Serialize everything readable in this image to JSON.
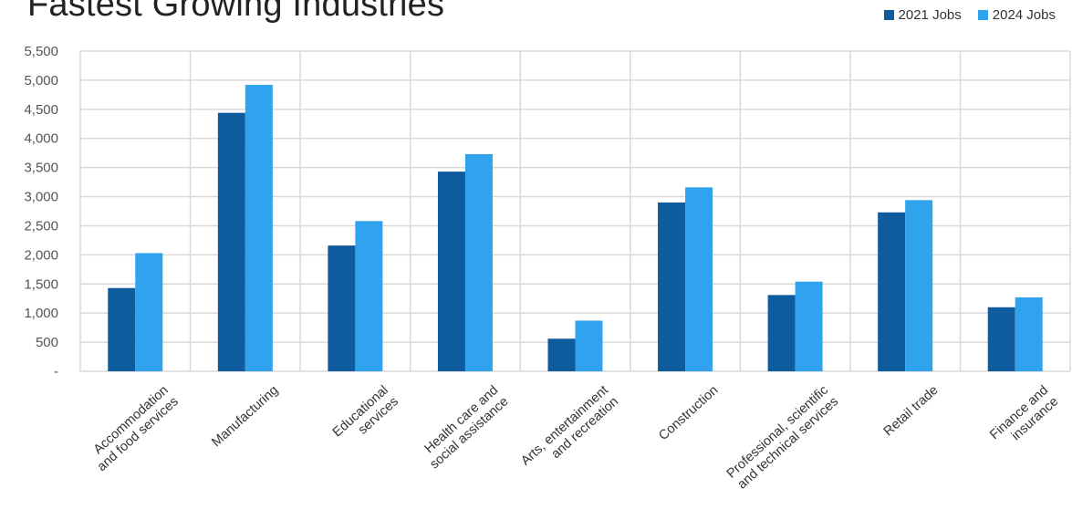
{
  "colors": {
    "series_2021": "#0e5b9e",
    "series_2024": "#31a3ee",
    "grid": "#d9d9d9"
  },
  "chart_data": {
    "type": "bar",
    "title": "Fastest Growing Industries",
    "categories": [
      [
        "Accommodation",
        "and food services"
      ],
      [
        "Manufacturing"
      ],
      [
        "Educational",
        "services"
      ],
      [
        "Health care and",
        "social assistance"
      ],
      [
        "Arts, entertainment",
        "and recreation"
      ],
      [
        "Construction"
      ],
      [
        "Professional, scientific",
        "and technical services"
      ],
      [
        "Retail trade"
      ],
      [
        "Finance and",
        "insurance"
      ]
    ],
    "series": [
      {
        "name": "2021 Jobs",
        "values": [
          1430,
          4440,
          2160,
          3430,
          560,
          2900,
          1310,
          2730,
          1100
        ]
      },
      {
        "name": "2024 Jobs",
        "values": [
          2030,
          4920,
          2580,
          3730,
          870,
          3160,
          1540,
          2940,
          1270
        ]
      }
    ],
    "ylim": [
      0,
      5500
    ],
    "yticks": [
      {
        "value": 0,
        "label": "-"
      },
      {
        "value": 500,
        "label": "500"
      },
      {
        "value": 1000,
        "label": "1,000"
      },
      {
        "value": 1500,
        "label": "1,500"
      },
      {
        "value": 2000,
        "label": "2,000"
      },
      {
        "value": 2500,
        "label": "2,500"
      },
      {
        "value": 3000,
        "label": "3,000"
      },
      {
        "value": 3500,
        "label": "3,500"
      },
      {
        "value": 4000,
        "label": "4,000"
      },
      {
        "value": 4500,
        "label": "4,500"
      },
      {
        "value": 5000,
        "label": "5,000"
      },
      {
        "value": 5500,
        "label": "5,500"
      }
    ],
    "grid": true,
    "legend_position": "top-right"
  }
}
